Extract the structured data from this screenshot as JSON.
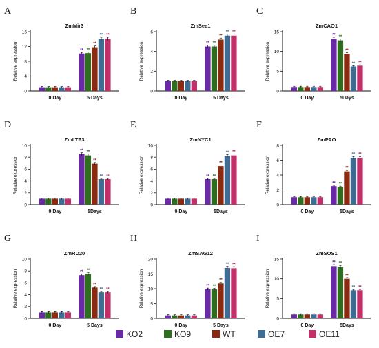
{
  "legend": {
    "items": [
      {
        "name": "KO2",
        "color": "#6a2aa6"
      },
      {
        "name": "KO9",
        "color": "#2f6e1f"
      },
      {
        "name": "WT",
        "color": "#8a2a10"
      },
      {
        "name": "OE7",
        "color": "#3f6c93"
      },
      {
        "name": "OE11",
        "color": "#c2306a"
      }
    ]
  },
  "chart_data": [
    {
      "panel": "A",
      "type": "bar",
      "title": "ZmMir3",
      "ylabel": "Relative expression",
      "categories": [
        "0 Day",
        "5 Days"
      ],
      "ylim": [
        0,
        16
      ],
      "yticks": [
        0,
        4,
        8,
        12,
        16
      ],
      "sig": [
        "",
        "**"
      ],
      "series": [
        {
          "name": "KO2",
          "values": [
            1,
            10.1
          ]
        },
        {
          "name": "KO9",
          "values": [
            1,
            10.2
          ]
        },
        {
          "name": "WT",
          "values": [
            1,
            11.8
          ]
        },
        {
          "name": "OE7",
          "values": [
            1,
            14.1
          ]
        },
        {
          "name": "OE11",
          "values": [
            1,
            14.1
          ]
        }
      ]
    },
    {
      "panel": "B",
      "type": "bar",
      "title": "ZmSee1",
      "ylabel": "Relative expression",
      "categories": [
        "0 Day",
        "5 Days"
      ],
      "ylim": [
        0,
        6
      ],
      "yticks": [
        0,
        2,
        4,
        6
      ],
      "sig": [
        "",
        "**"
      ],
      "series": [
        {
          "name": "KO2",
          "values": [
            1,
            4.5
          ]
        },
        {
          "name": "KO9",
          "values": [
            1,
            4.5
          ]
        },
        {
          "name": "WT",
          "values": [
            1,
            5.2
          ]
        },
        {
          "name": "OE7",
          "values": [
            1,
            5.6
          ]
        },
        {
          "name": "OE11",
          "values": [
            1,
            5.6
          ]
        }
      ]
    },
    {
      "panel": "C",
      "type": "bar",
      "title": "ZmCAO1",
      "ylabel": "Relative expression",
      "categories": [
        "0 Day",
        "5Days"
      ],
      "ylim": [
        0,
        15
      ],
      "yticks": [
        0,
        5,
        10,
        15
      ],
      "sig": [
        "",
        "**"
      ],
      "series": [
        {
          "name": "KO2",
          "values": [
            1,
            13.2
          ]
        },
        {
          "name": "KO9",
          "values": [
            1,
            12.8
          ]
        },
        {
          "name": "WT",
          "values": [
            1,
            9.4
          ]
        },
        {
          "name": "OE7",
          "values": [
            1,
            6.2
          ]
        },
        {
          "name": "OE11",
          "values": [
            1,
            6.4
          ]
        }
      ]
    },
    {
      "panel": "D",
      "type": "bar",
      "title": "ZmLTP3",
      "ylabel": "Relative expression",
      "categories": [
        "0 Day",
        "5Days"
      ],
      "ylim": [
        0,
        10
      ],
      "yticks": [
        0,
        2,
        4,
        6,
        8,
        10
      ],
      "sig": [
        "",
        "**"
      ],
      "series": [
        {
          "name": "KO2",
          "values": [
            1,
            8.5
          ]
        },
        {
          "name": "KO9",
          "values": [
            1,
            8.3
          ]
        },
        {
          "name": "WT",
          "values": [
            1,
            6.9
          ]
        },
        {
          "name": "OE7",
          "values": [
            1,
            4.3
          ]
        },
        {
          "name": "OE11",
          "values": [
            1,
            4.3
          ]
        }
      ]
    },
    {
      "panel": "E",
      "type": "bar",
      "title": "ZmNYC1",
      "ylabel": "Relative expression",
      "categories": [
        "0 Day",
        "5Days"
      ],
      "ylim": [
        0,
        10
      ],
      "yticks": [
        0,
        2,
        4,
        6,
        8,
        10
      ],
      "sig": [
        "",
        "**"
      ],
      "series": [
        {
          "name": "KO2",
          "values": [
            1,
            4.3
          ]
        },
        {
          "name": "KO9",
          "values": [
            1,
            4.3
          ]
        },
        {
          "name": "WT",
          "values": [
            1,
            6.5
          ]
        },
        {
          "name": "OE7",
          "values": [
            1,
            8.2
          ]
        },
        {
          "name": "OE11",
          "values": [
            1,
            8.3
          ]
        }
      ]
    },
    {
      "panel": "F",
      "type": "bar",
      "title": "ZmPAO",
      "ylabel": "Relative expression",
      "categories": [
        "0 Day",
        "5Days"
      ],
      "ylim": [
        0,
        8
      ],
      "yticks": [
        0,
        2,
        4,
        6,
        8
      ],
      "sig": [
        "",
        "**"
      ],
      "series": [
        {
          "name": "KO2",
          "values": [
            1,
            2.5
          ]
        },
        {
          "name": "KO9",
          "values": [
            1,
            2.4
          ]
        },
        {
          "name": "WT",
          "values": [
            1,
            4.5
          ]
        },
        {
          "name": "OE7",
          "values": [
            1,
            6.3
          ]
        },
        {
          "name": "OE11",
          "values": [
            1,
            6.3
          ]
        }
      ]
    },
    {
      "panel": "G",
      "type": "bar",
      "title": "ZmRD20",
      "ylabel": "Relative expression",
      "categories": [
        "0 Day",
        "5 Days"
      ],
      "ylim": [
        0,
        10
      ],
      "yticks": [
        0,
        2,
        4,
        6,
        8,
        10
      ],
      "sig": [
        "",
        "**"
      ],
      "series": [
        {
          "name": "KO2",
          "values": [
            1,
            7.3
          ]
        },
        {
          "name": "KO9",
          "values": [
            1,
            7.5
          ]
        },
        {
          "name": "WT",
          "values": [
            1,
            5.2
          ]
        },
        {
          "name": "OE7",
          "values": [
            1,
            4.4
          ]
        },
        {
          "name": "OE11",
          "values": [
            1,
            4.4
          ]
        }
      ]
    },
    {
      "panel": "H",
      "type": "bar",
      "title": "ZmSAG12",
      "ylabel": "Relative expression",
      "categories": [
        "0 Day",
        "5 Days"
      ],
      "ylim": [
        0,
        20
      ],
      "yticks": [
        0,
        5,
        10,
        15,
        20
      ],
      "sig": [
        "",
        "**"
      ],
      "series": [
        {
          "name": "KO2",
          "values": [
            1,
            9.9
          ]
        },
        {
          "name": "KO9",
          "values": [
            1,
            9.8
          ]
        },
        {
          "name": "WT",
          "values": [
            1,
            11.8
          ]
        },
        {
          "name": "OE7",
          "values": [
            1,
            17
          ]
        },
        {
          "name": "OE11",
          "values": [
            1,
            16.9
          ]
        }
      ]
    },
    {
      "panel": "I",
      "type": "bar",
      "title": "ZmSOS1",
      "ylabel": "Relative expression",
      "categories": [
        "0 Day",
        "5Days"
      ],
      "ylim": [
        0,
        15
      ],
      "yticks": [
        0,
        5,
        10,
        15
      ],
      "sig": [
        "",
        "**"
      ],
      "series": [
        {
          "name": "KO2",
          "values": [
            1,
            13.2
          ]
        },
        {
          "name": "KO9",
          "values": [
            1,
            13
          ]
        },
        {
          "name": "WT",
          "values": [
            1,
            10
          ]
        },
        {
          "name": "OE7",
          "values": [
            1,
            7.1
          ]
        },
        {
          "name": "OE11",
          "values": [
            1,
            7.1
          ]
        }
      ]
    }
  ]
}
